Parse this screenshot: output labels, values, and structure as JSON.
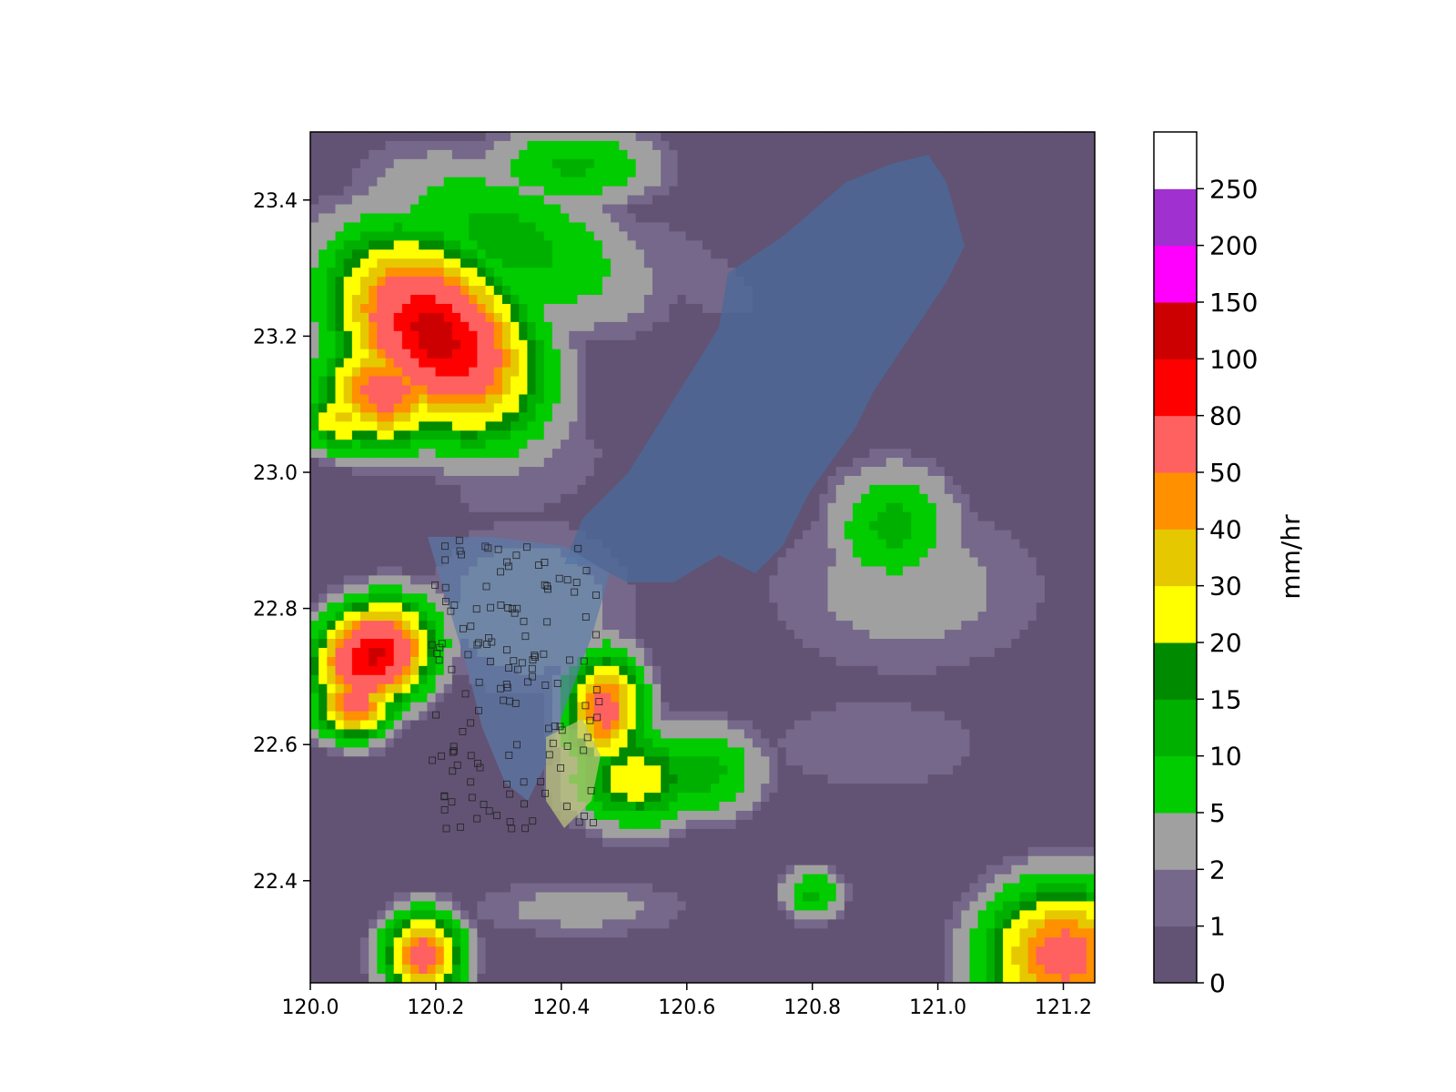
{
  "chart_data": {
    "type": "heatmap",
    "title": "",
    "xlabel": "",
    "ylabel": "",
    "xlim": [
      120.0,
      121.25
    ],
    "ylim": [
      22.25,
      23.5
    ],
    "xticks": [
      "120.0",
      "120.2",
      "120.4",
      "120.6",
      "120.8",
      "121.0",
      "121.2"
    ],
    "yticks": [
      "22.4",
      "22.6",
      "22.8",
      "23.0",
      "23.2",
      "23.4"
    ],
    "colorbar": {
      "label": "mm/hr",
      "levels": [
        0,
        1,
        2,
        5,
        10,
        15,
        20,
        30,
        40,
        50,
        80,
        100,
        150,
        200,
        250
      ],
      "tick_labels": [
        "0",
        "1",
        "2",
        "5",
        "10",
        "15",
        "20",
        "30",
        "40",
        "50",
        "80",
        "100",
        "150",
        "200",
        "250"
      ],
      "colors": [
        "#625374",
        "#76688a",
        "#a0a0a0",
        "#00cc00",
        "#00b000",
        "#008a00",
        "#ffff00",
        "#e6c800",
        "#ff9000",
        "#ff6060",
        "#ff0000",
        "#cc0000",
        "#ff00ff",
        "#a030d0",
        "#ffffff"
      ]
    },
    "series": [
      {
        "rain_cells": [
          {
            "lon": 120.2,
            "lat": 23.2,
            "lon_r": 0.11,
            "lat_r": 0.16,
            "peak": 110,
            "rot": 52
          },
          {
            "lon": 120.32,
            "lat": 23.34,
            "lon_r": 0.22,
            "lat_r": 0.1,
            "peak": 12,
            "rot": -20
          },
          {
            "lon": 120.12,
            "lat": 23.12,
            "lon_r": 0.1,
            "lat_r": 0.08,
            "peak": 60,
            "rot": 0
          },
          {
            "lon": 120.05,
            "lat": 23.08,
            "lon_r": 0.06,
            "lat_r": 0.05,
            "peak": 33,
            "rot": 0
          },
          {
            "lon": 120.42,
            "lat": 23.45,
            "lon_r": 0.14,
            "lat_r": 0.06,
            "peak": 11,
            "rot": 0
          },
          {
            "lon": 120.1,
            "lat": 22.73,
            "lon_r": 0.09,
            "lat_r": 0.07,
            "peak": 105,
            "rot": 25
          },
          {
            "lon": 120.07,
            "lat": 22.66,
            "lon_r": 0.06,
            "lat_r": 0.05,
            "peak": 60,
            "rot": 0
          },
          {
            "lon": 120.47,
            "lat": 22.65,
            "lon_r": 0.06,
            "lat_r": 0.08,
            "peak": 58,
            "rot": 0
          },
          {
            "lon": 120.52,
            "lat": 22.55,
            "lon_r": 0.1,
            "lat_r": 0.07,
            "peak": 26,
            "rot": 0
          },
          {
            "lon": 120.62,
            "lat": 22.56,
            "lon_r": 0.1,
            "lat_r": 0.07,
            "peak": 13,
            "rot": 0
          },
          {
            "lon": 120.93,
            "lat": 22.92,
            "lon_r": 0.1,
            "lat_r": 0.09,
            "peak": 12,
            "rot": 0
          },
          {
            "lon": 120.95,
            "lat": 22.83,
            "lon_r": 0.26,
            "lat_r": 0.15,
            "peak": 3,
            "rot": 0
          },
          {
            "lon": 120.18,
            "lat": 22.29,
            "lon_r": 0.06,
            "lat_r": 0.06,
            "peak": 60,
            "rot": 0
          },
          {
            "lon": 121.2,
            "lat": 22.29,
            "lon_r": 0.12,
            "lat_r": 0.1,
            "peak": 60,
            "rot": 0
          },
          {
            "lon": 120.8,
            "lat": 22.38,
            "lon_r": 0.05,
            "lat_r": 0.04,
            "peak": 11,
            "rot": 0
          },
          {
            "lon": 120.43,
            "lat": 22.36,
            "lon_r": 0.2,
            "lat_r": 0.05,
            "peak": 3,
            "rot": 0
          },
          {
            "lon": 120.35,
            "lat": 22.8,
            "lon_r": 0.18,
            "lat_r": 0.14,
            "peak": 4,
            "rot": 0
          },
          {
            "lon": 120.6,
            "lat": 23.3,
            "lon_r": 0.25,
            "lat_r": 0.08,
            "peak": 1.5,
            "rot": -30
          },
          {
            "lon": 120.35,
            "lat": 23.0,
            "lon_r": 0.25,
            "lat_r": 0.12,
            "peak": 1.4,
            "rot": 20
          },
          {
            "lon": 120.9,
            "lat": 22.6,
            "lon_r": 0.3,
            "lat_r": 0.12,
            "peak": 1.5,
            "rot": 0
          }
        ]
      }
    ]
  }
}
